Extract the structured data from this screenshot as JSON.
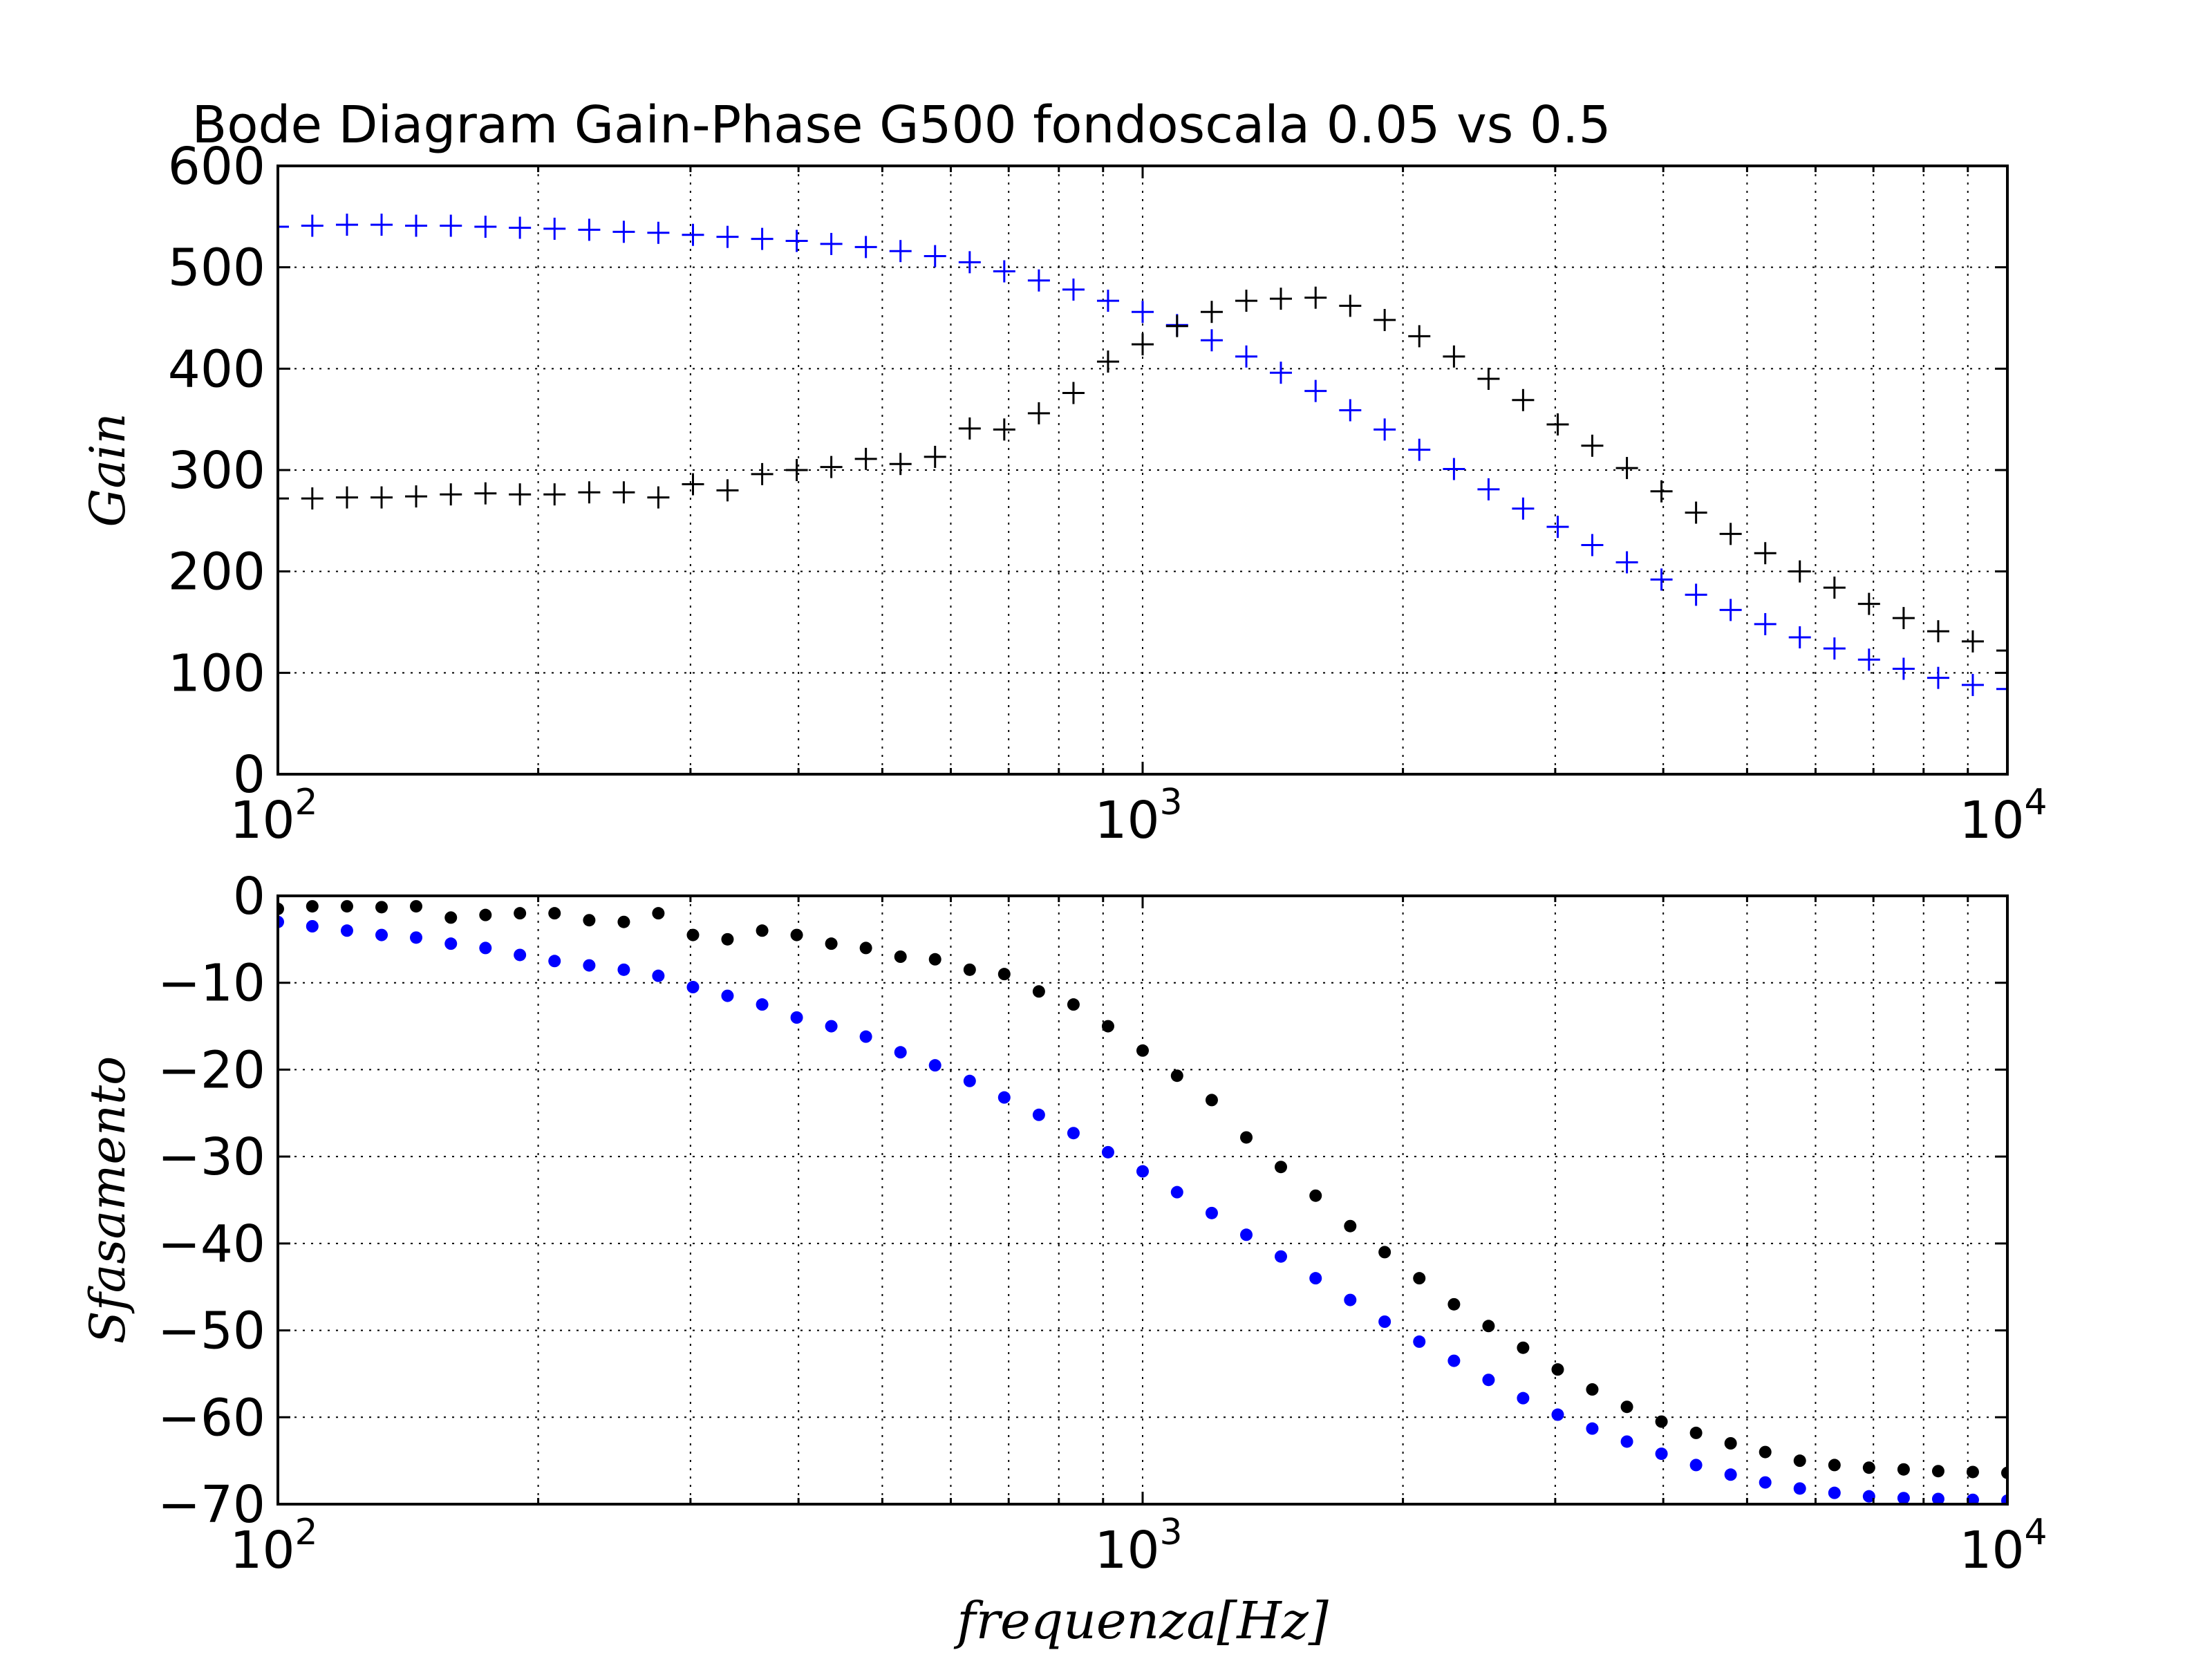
{
  "title": "Bode Diagram Gain-Phase G500 fondoscala 0.05 vs 0.5",
  "colors": {
    "series_a": "#0000ff",
    "series_b": "#000000",
    "grid": "#000000",
    "axes": "#000000"
  },
  "chart_data": [
    {
      "type": "scatter",
      "marker": "plus",
      "title": "Bode Diagram Gain-Phase G500 fondoscala 0.05 vs 0.5",
      "ylabel": "Gain",
      "xlabel": "",
      "xscale": "log",
      "xlim": [
        100,
        10000
      ],
      "ylim": [
        0,
        600
      ],
      "grid": true,
      "x_ticks": [
        {
          "base": "10",
          "exp": "2",
          "value": 100
        },
        {
          "base": "10",
          "exp": "3",
          "value": 1000
        },
        {
          "base": "10",
          "exp": "4",
          "value": 10000
        }
      ],
      "y_ticks": [
        "0",
        "100",
        "200",
        "300",
        "400",
        "500",
        "600"
      ],
      "series": [
        {
          "color": "#0000ff",
          "x": [
            100,
            109.6,
            120.2,
            131.8,
            144.5,
            158.5,
            173.8,
            190.5,
            208.9,
            229.1,
            251.2,
            275.4,
            302,
            331.1,
            363.1,
            398.1,
            436.5,
            478.6,
            524.8,
            575.4,
            631,
            691.8,
            758.6,
            831.8,
            912,
            1000,
            1096,
            1202,
            1318,
            1445,
            1585,
            1738,
            1905,
            2089,
            2291,
            2512,
            2754,
            3020,
            3311,
            3631,
            3981,
            4365,
            4786,
            5248,
            5754,
            6310,
            6918,
            7586,
            8318,
            9120,
            10000
          ],
          "y": [
            540,
            541,
            542,
            542,
            541,
            541,
            540,
            539,
            538,
            537,
            535,
            534,
            532,
            530,
            528,
            526,
            523,
            520,
            516,
            511,
            505,
            496,
            487,
            478,
            467,
            456,
            443,
            428,
            412,
            396,
            378,
            359,
            340,
            320,
            301,
            281,
            262,
            244,
            226,
            209,
            192,
            177,
            162,
            148,
            135,
            124,
            113,
            104,
            95,
            88,
            84
          ]
        },
        {
          "color": "#000000",
          "x": [
            100,
            109.6,
            120.2,
            131.8,
            144.5,
            158.5,
            173.8,
            190.5,
            208.9,
            229.1,
            251.2,
            275.4,
            302,
            331.1,
            363.1,
            398.1,
            436.5,
            478.6,
            524.8,
            575.4,
            631,
            691.8,
            758.6,
            831.8,
            912,
            1000,
            1096,
            1202,
            1318,
            1445,
            1585,
            1738,
            1905,
            2089,
            2291,
            2512,
            2754,
            3020,
            3311,
            3631,
            3981,
            4365,
            4786,
            5248,
            5754,
            6310,
            6918,
            7586,
            8318,
            9120,
            10000
          ],
          "y": [
            272,
            272,
            273,
            273,
            274,
            276,
            277,
            276,
            276,
            278,
            278,
            273,
            286,
            280,
            296,
            300,
            303,
            311,
            306,
            313,
            341,
            340,
            356,
            376,
            407,
            424,
            442,
            456,
            467,
            469,
            470,
            462,
            448,
            432,
            412,
            390,
            369,
            345,
            324,
            302,
            279,
            258,
            237,
            218,
            200,
            184,
            168,
            154,
            141,
            131,
            122
          ]
        }
      ]
    },
    {
      "type": "scatter",
      "marker": "dot",
      "ylabel": "Sfasamento",
      "xlabel": "frequenza[Hz]",
      "xscale": "log",
      "xlim": [
        100,
        10000
      ],
      "ylim": [
        -70,
        0
      ],
      "grid": true,
      "x_ticks": [
        {
          "base": "10",
          "exp": "2",
          "value": 100
        },
        {
          "base": "10",
          "exp": "3",
          "value": 1000
        },
        {
          "base": "10",
          "exp": "4",
          "value": 10000
        }
      ],
      "y_ticks": [
        "0",
        "−10",
        "−20",
        "−30",
        "−40",
        "−50",
        "−60",
        "−70"
      ],
      "series": [
        {
          "color": "#0000ff",
          "x": [
            100,
            109.6,
            120.2,
            131.8,
            144.5,
            158.5,
            173.8,
            190.5,
            208.9,
            229.1,
            251.2,
            275.4,
            302,
            331.1,
            363.1,
            398.1,
            436.5,
            478.6,
            524.8,
            575.4,
            631,
            691.8,
            758.6,
            831.8,
            912,
            1000,
            1096,
            1202,
            1318,
            1445,
            1585,
            1738,
            1905,
            2089,
            2291,
            2512,
            2754,
            3020,
            3311,
            3631,
            3981,
            4365,
            4786,
            5248,
            5754,
            6310,
            6918,
            7586,
            8318,
            9120,
            10000
          ],
          "y": [
            -3,
            -3.5,
            -4,
            -4.5,
            -4.8,
            -5.5,
            -6,
            -6.8,
            -7.5,
            -8,
            -8.5,
            -9.2,
            -10.5,
            -11.5,
            -12.5,
            -14,
            -15,
            -16.2,
            -18,
            -19.5,
            -21.3,
            -23.2,
            -25.2,
            -27.3,
            -29.5,
            -31.7,
            -34.1,
            -36.5,
            -39,
            -41.5,
            -44,
            -46.5,
            -49,
            -51.3,
            -53.5,
            -55.7,
            -57.8,
            -59.7,
            -61.3,
            -62.8,
            -64.2,
            -65.5,
            -66.6,
            -67.5,
            -68.2,
            -68.7,
            -69.1,
            -69.3,
            -69.4,
            -69.5,
            -69.6
          ]
        },
        {
          "color": "#000000",
          "x": [
            100,
            109.6,
            120.2,
            131.8,
            144.5,
            158.5,
            173.8,
            190.5,
            208.9,
            229.1,
            251.2,
            275.4,
            302,
            331.1,
            363.1,
            398.1,
            436.5,
            478.6,
            524.8,
            575.4,
            631,
            691.8,
            758.6,
            831.8,
            912,
            1000,
            1096,
            1202,
            1318,
            1445,
            1585,
            1738,
            1905,
            2089,
            2291,
            2512,
            2754,
            3020,
            3311,
            3631,
            3981,
            4365,
            4786,
            5248,
            5754,
            6310,
            6918,
            7586,
            8318,
            9120,
            10000
          ],
          "y": [
            -1.5,
            -1.2,
            -1.2,
            -1.3,
            -1.2,
            -2.5,
            -2.2,
            -2,
            -2,
            -2.8,
            -3,
            -2,
            -4.5,
            -5,
            -4,
            -4.5,
            -5.5,
            -6,
            -7,
            -7.3,
            -8.5,
            -9,
            -11,
            -12.5,
            -15,
            -17.8,
            -20.7,
            -23.5,
            -27.8,
            -31.2,
            -34.5,
            -38,
            -41,
            -44,
            -47,
            -49.5,
            -52,
            -54.5,
            -56.8,
            -58.8,
            -60.5,
            -61.8,
            -63,
            -64,
            -65,
            -65.5,
            -65.8,
            -66,
            -66.2,
            -66.3,
            -66.4
          ]
        }
      ]
    }
  ]
}
